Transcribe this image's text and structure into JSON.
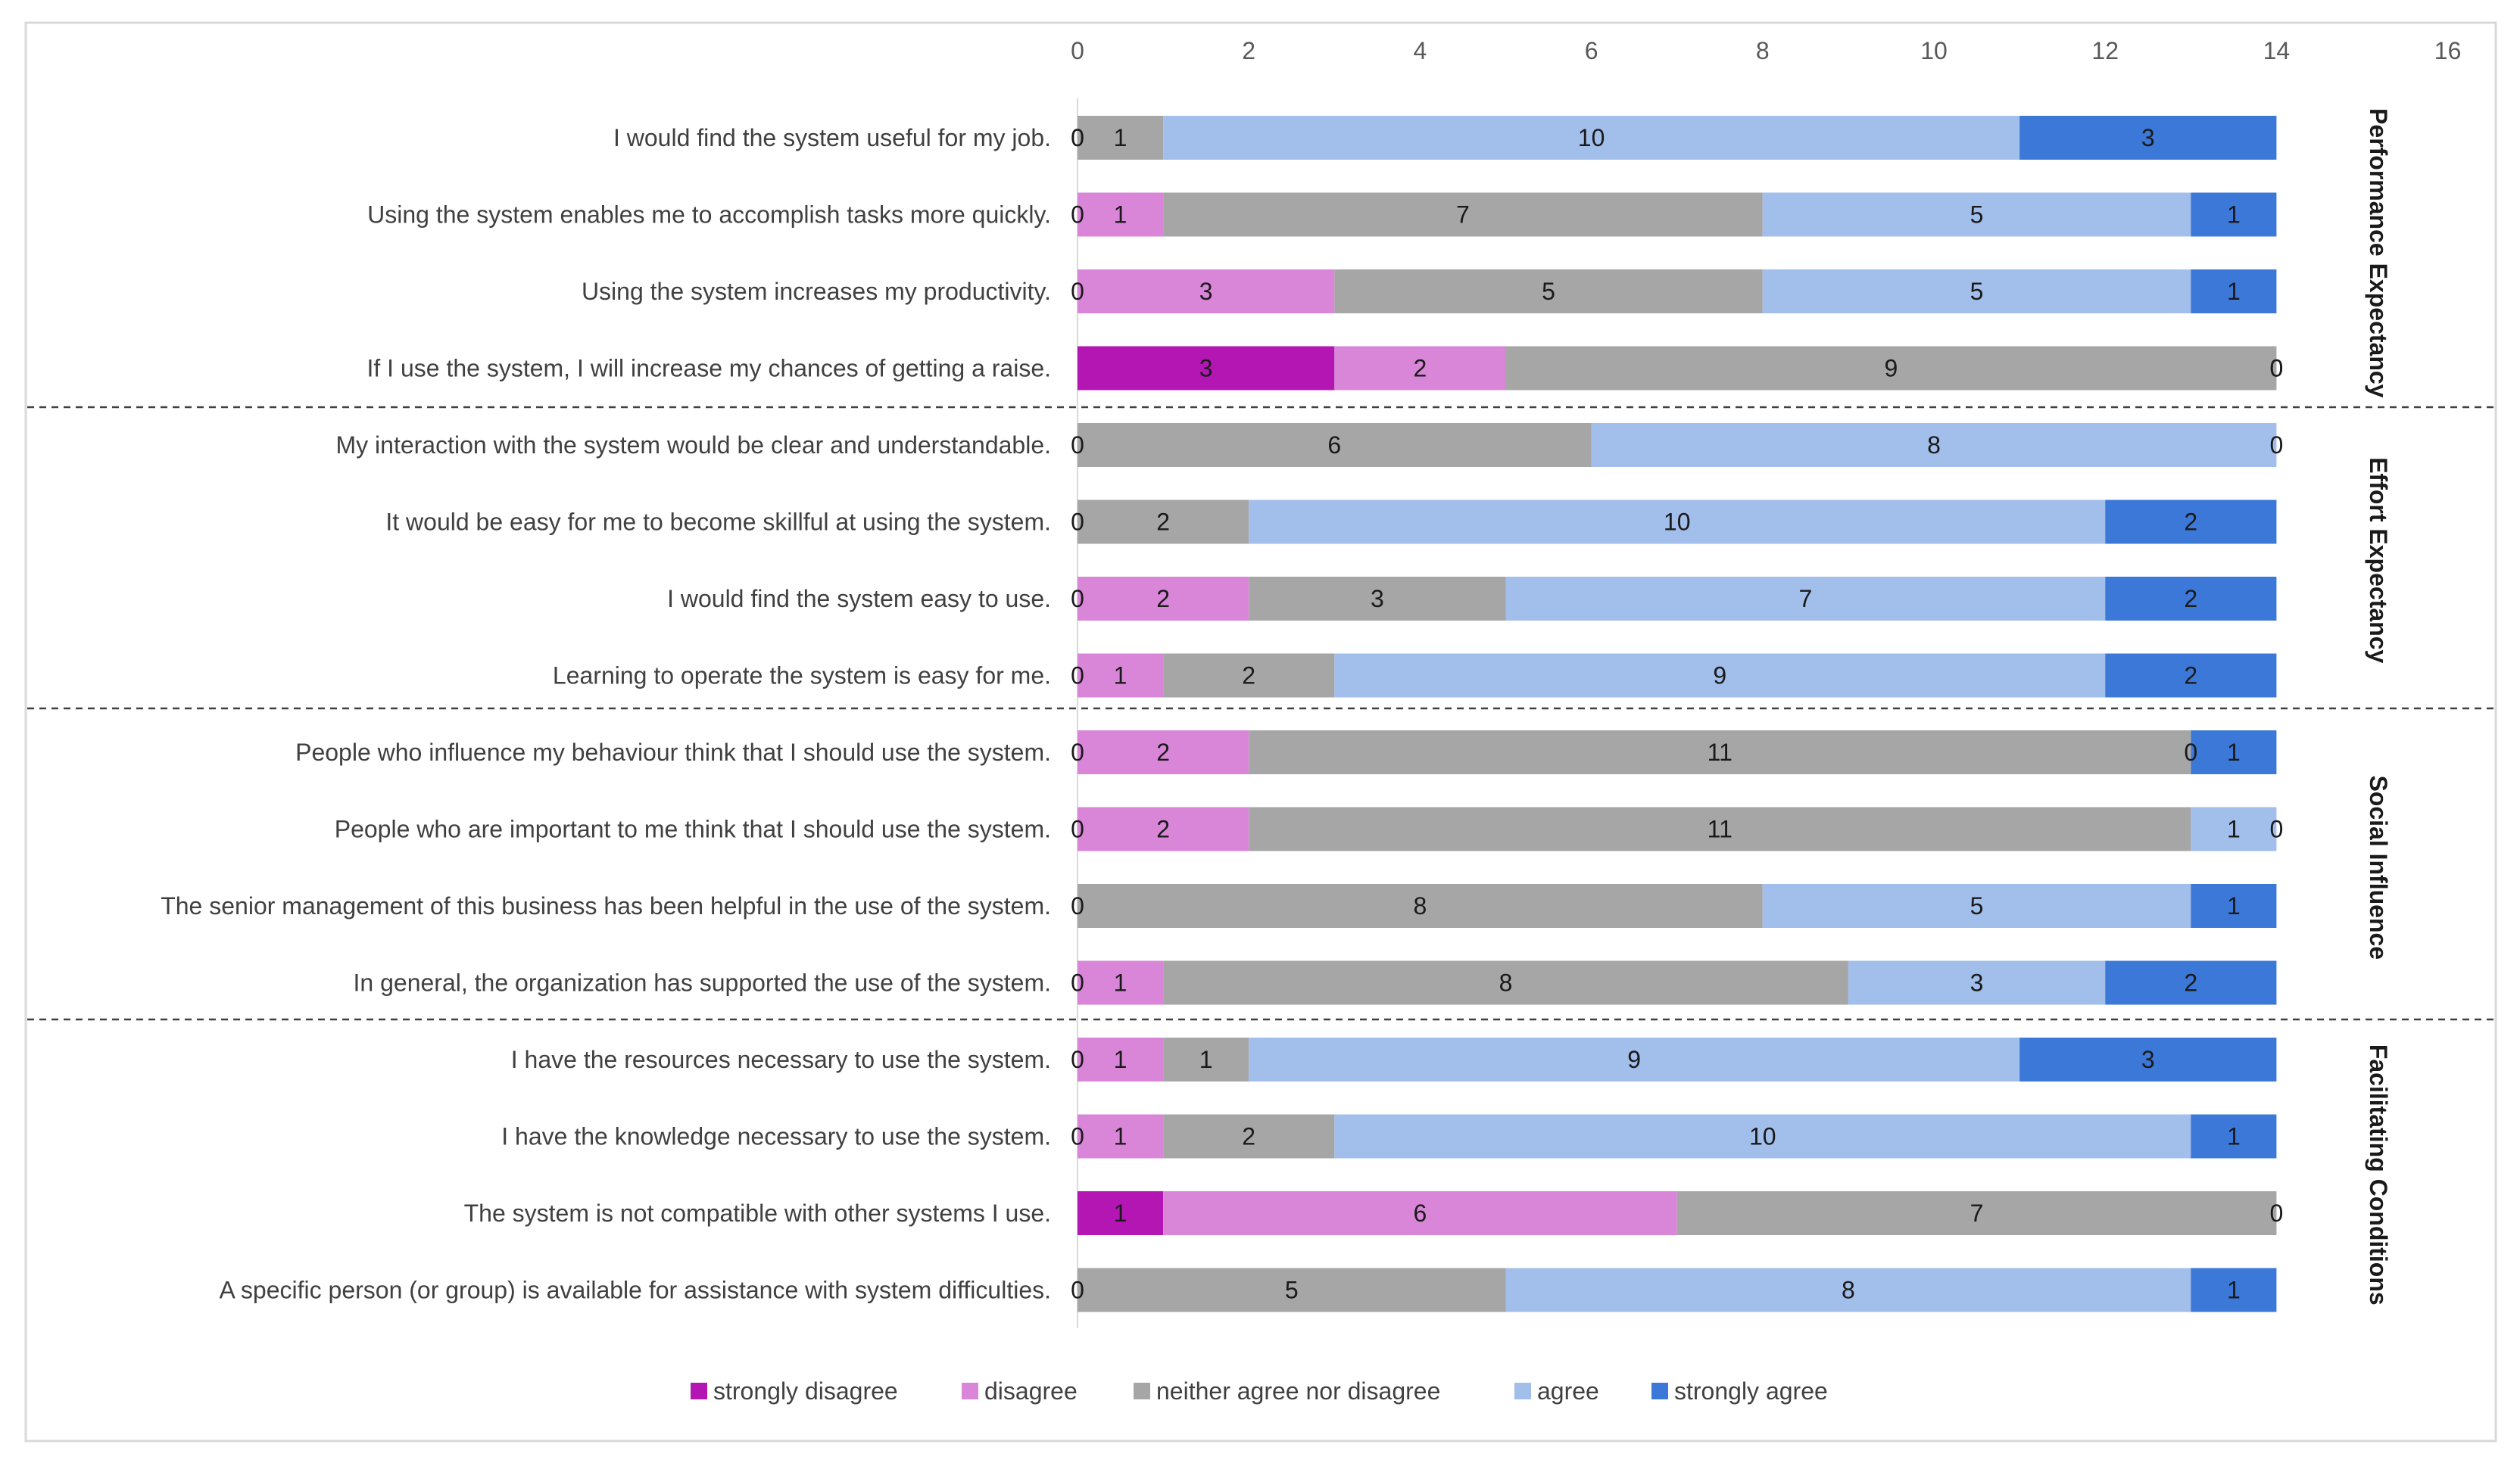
{
  "chart_data": {
    "type": "stacked-bar-horizontal",
    "xlim": [
      0,
      16
    ],
    "x_ticks": [
      0,
      2,
      4,
      6,
      8,
      10,
      12,
      14,
      16
    ],
    "legend_position": "bottom",
    "legend": [
      {
        "key": "strongly_disagree",
        "label": "strongly disagree",
        "color": "#B316B3"
      },
      {
        "key": "disagree",
        "label": "disagree",
        "color": "#D986D9"
      },
      {
        "key": "neutral",
        "label": "neither agree nor disagree",
        "color": "#A6A6A6"
      },
      {
        "key": "agree",
        "label": "agree",
        "color": "#A2BEEA"
      },
      {
        "key": "strongly_agree",
        "label": "strongly agree",
        "color": "#3C78D8"
      }
    ],
    "categories": [
      "I would find the system useful for my job.",
      "Using the system enables me to accomplish tasks more quickly.",
      "Using the system increases my productivity.",
      "If I use the system, I will increase my chances of getting a raise.",
      "My interaction with the system would be clear and understandable.",
      "It would be easy for me to become skillful at using the system.",
      "I would find the system easy to use.",
      "Learning to operate the system is easy for me.",
      "People who influence my behaviour think that I should use the system.",
      "People who are important to me think that I should use the system.",
      "The senior management of this business has been helpful in the use of the system.",
      "In general, the organization has supported the use of the system.",
      "I have the resources necessary to use the system.",
      "I have the knowledge necessary to use the system.",
      "The system is not compatible with other systems I use.",
      "A specific person (or group) is available for assistance with system difficulties."
    ],
    "series": [
      {
        "name": "strongly disagree",
        "values": [
          0,
          0,
          0,
          3,
          0,
          0,
          0,
          0,
          0,
          0,
          0,
          0,
          0,
          0,
          1,
          0
        ]
      },
      {
        "name": "disagree",
        "values": [
          0,
          1,
          3,
          2,
          0,
          0,
          2,
          1,
          2,
          2,
          0,
          1,
          1,
          1,
          6,
          0
        ]
      },
      {
        "name": "neither agree nor disagree",
        "values": [
          1,
          7,
          5,
          9,
          6,
          2,
          3,
          2,
          11,
          11,
          8,
          8,
          1,
          2,
          7,
          5
        ]
      },
      {
        "name": "agree",
        "values": [
          10,
          5,
          5,
          0,
          8,
          10,
          7,
          9,
          0,
          1,
          5,
          3,
          9,
          10,
          0,
          8
        ]
      },
      {
        "name": "strongly agree",
        "values": [
          3,
          1,
          1,
          0,
          0,
          2,
          2,
          2,
          1,
          0,
          1,
          2,
          3,
          1,
          0,
          1
        ]
      }
    ],
    "groups": [
      {
        "label": "Performance Expectancy",
        "rows": [
          0,
          1,
          2,
          3
        ]
      },
      {
        "label": "Effort Expectancy",
        "rows": [
          4,
          5,
          6,
          7
        ]
      },
      {
        "label": "Social Influence",
        "rows": [
          8,
          9,
          10,
          11
        ]
      },
      {
        "label": "Facilitating Conditions",
        "rows": [
          12,
          13,
          14,
          15
        ]
      }
    ],
    "zero_labels": [
      {
        "row": 0,
        "series": 0
      },
      {
        "row": 0,
        "series": 1
      },
      {
        "row": 1,
        "series": 0
      },
      {
        "row": 2,
        "series": 0
      },
      {
        "row": 3,
        "series": 3
      },
      {
        "row": 3,
        "series": 4
      },
      {
        "row": 4,
        "series": 1
      },
      {
        "row": 4,
        "series": 4
      },
      {
        "row": 5,
        "series": 1
      },
      {
        "row": 6,
        "series": 0
      },
      {
        "row": 7,
        "series": 0
      },
      {
        "row": 8,
        "series": 0
      },
      {
        "row": 8,
        "series": 3
      },
      {
        "row": 9,
        "series": 0
      },
      {
        "row": 9,
        "series": 4
      },
      {
        "row": 10,
        "series": 1
      },
      {
        "row": 11,
        "series": 0
      },
      {
        "row": 12,
        "series": 0
      },
      {
        "row": 13,
        "series": 0
      },
      {
        "row": 14,
        "series": 4
      },
      {
        "row": 15,
        "series": 1
      }
    ]
  }
}
